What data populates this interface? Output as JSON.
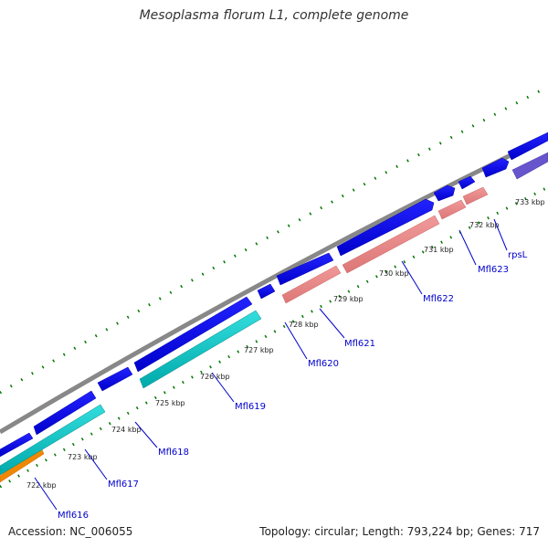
{
  "title": "Mesoplasma florum L1, complete genome",
  "footer": {
    "accession": "Accession: NC_006055",
    "summary": "Topology: circular; Length: 793,224 bp; Genes: 717"
  },
  "ticks": [
    "722 kbp",
    "723 kbp",
    "724 kbp",
    "725 kbp",
    "726 kbp",
    "727 kbp",
    "728 kbp",
    "729 kbp",
    "730 kbp",
    "731 kbp",
    "732 kbp",
    "733 kbp"
  ],
  "gene_labels": [
    "Mfl616",
    "Mfl617",
    "Mfl618",
    "Mfl619",
    "Mfl620",
    "Mfl621",
    "Mfl622",
    "Mfl623",
    "rpsL"
  ],
  "colors": {
    "cds": "#0000ee",
    "rrna": "#00cccc",
    "trna": "#ee8888",
    "misc": "#ee8800",
    "repeat": "#6655cc",
    "backbone": "#888888",
    "tick": "#007700",
    "label": "#0000cc"
  }
}
